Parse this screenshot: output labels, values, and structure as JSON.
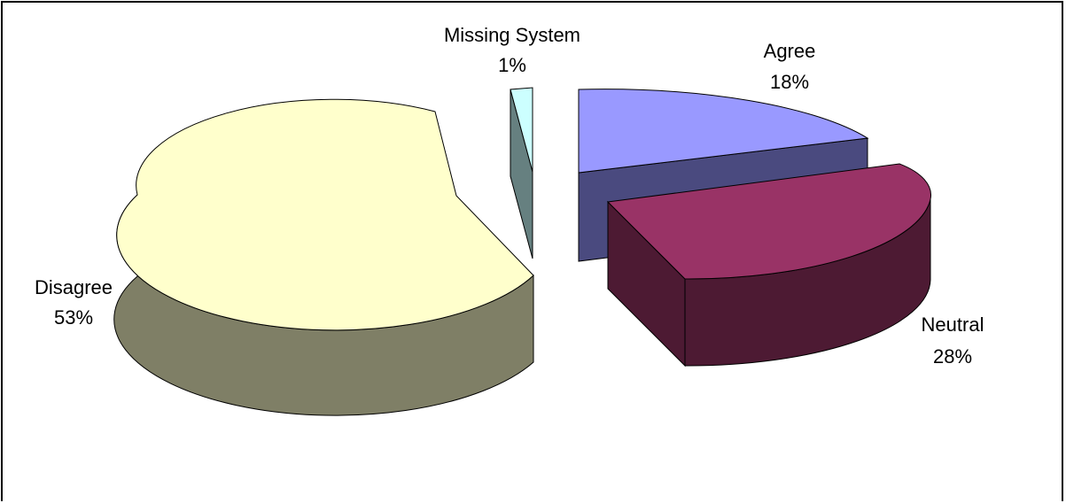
{
  "chart_data": {
    "type": "pie",
    "style": "3d-exploded",
    "title": "",
    "slices": [
      {
        "label": "Agree",
        "value": 18,
        "value_label": "18%",
        "top_color": "#9999ff",
        "side_color": "#4a4a7f"
      },
      {
        "label": "Neutral",
        "value": 28,
        "value_label": "28%",
        "top_color": "#993366",
        "side_color": "#4d1a33"
      },
      {
        "label": "Disagree",
        "value": 53,
        "value_label": "53%",
        "top_color": "#ffffcc",
        "side_color": "#7f7f66"
      },
      {
        "label": "Missing System",
        "value": 1,
        "value_label": "1%",
        "top_color": "#ccffff",
        "side_color": "#668080"
      }
    ]
  }
}
